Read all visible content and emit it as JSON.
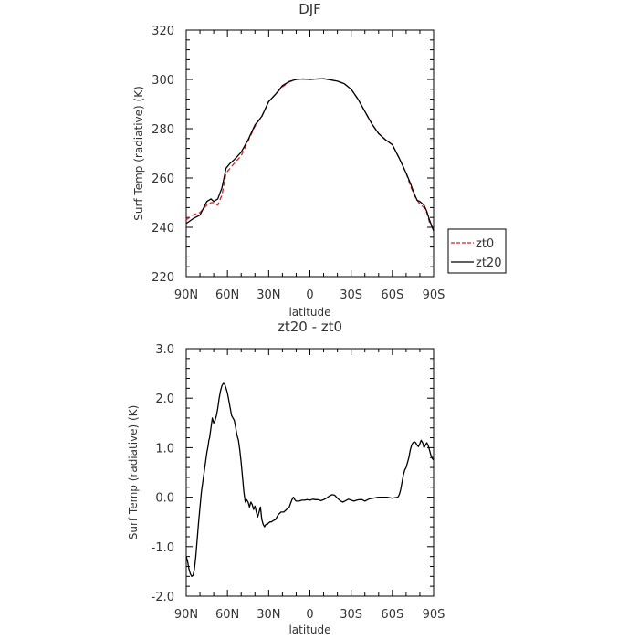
{
  "chart_data": [
    {
      "type": "line",
      "title": "DJF",
      "xlabel": "latitude",
      "ylabel": "Surf Temp (radiative) (K)",
      "xlim": [
        -90,
        90
      ],
      "ylim": [
        220,
        320
      ],
      "x_tick_values": [
        -90,
        -60,
        -30,
        0,
        30,
        60,
        90
      ],
      "x_tick_labels": [
        "90N",
        "60N",
        "30N",
        "0",
        "30S",
        "60S",
        "90S"
      ],
      "y_tick_values": [
        220,
        240,
        260,
        280,
        300,
        320
      ],
      "y_tick_labels": [
        "220",
        "240",
        "260",
        "280",
        "300",
        "320"
      ],
      "legend_position": "outside-right",
      "grid": false,
      "series": [
        {
          "name": "zt0",
          "color": "#d62020",
          "dash": "dashed",
          "x": [
            -90,
            -85,
            -80,
            -75,
            -72,
            -70,
            -67,
            -64,
            -61,
            -58,
            -55,
            -50,
            -45,
            -40,
            -35,
            -30,
            -25,
            -20,
            -15,
            -10,
            -5,
            0,
            5,
            10,
            15,
            20,
            25,
            30,
            35,
            40,
            45,
            50,
            55,
            60,
            65,
            70,
            73,
            76,
            78,
            80,
            83,
            85,
            87,
            90
          ],
          "y": [
            243,
            245,
            246,
            249,
            250,
            250,
            249,
            253,
            262,
            264,
            266,
            269,
            275,
            281,
            285,
            291,
            294,
            297,
            299,
            300,
            300.2,
            300,
            300.2,
            300.3,
            299.8,
            299.3,
            298.3,
            296,
            292,
            287,
            282,
            278,
            275.5,
            273.5,
            268,
            262,
            257,
            253,
            251,
            249.5,
            248,
            246,
            242,
            239
          ]
        },
        {
          "name": "zt20",
          "color": "#000000",
          "dash": "solid",
          "x": [
            -90,
            -85,
            -80,
            -75,
            -72,
            -70,
            -67,
            -64,
            -61,
            -58,
            -55,
            -50,
            -45,
            -40,
            -35,
            -30,
            -25,
            -20,
            -15,
            -10,
            -5,
            0,
            5,
            10,
            15,
            20,
            25,
            30,
            35,
            40,
            45,
            50,
            55,
            60,
            65,
            70,
            73,
            76,
            78,
            80,
            83,
            85,
            87,
            90
          ],
          "y": [
            241.5,
            243.5,
            245,
            250.5,
            251.5,
            250.5,
            251.5,
            256,
            264,
            266,
            267.5,
            270.5,
            275.5,
            281.5,
            285,
            291,
            294,
            297.5,
            299.2,
            300,
            300.2,
            300,
            300.2,
            300.3,
            299.8,
            299.3,
            298.3,
            296,
            292,
            287,
            282,
            278,
            275.5,
            273.5,
            268,
            262,
            258,
            253.5,
            251,
            250.5,
            249,
            246.5,
            243,
            238.5
          ]
        }
      ]
    },
    {
      "type": "line",
      "title": "zt20 - zt0",
      "xlabel": "latitude",
      "ylabel": "Surf Temp (radiative) (K)",
      "xlim": [
        -90,
        90
      ],
      "ylim": [
        -2.0,
        3.0
      ],
      "x_tick_values": [
        -90,
        -60,
        -30,
        0,
        30,
        60,
        90
      ],
      "x_tick_labels": [
        "90N",
        "60N",
        "30N",
        "0",
        "30S",
        "60S",
        "90S"
      ],
      "y_tick_values": [
        -2,
        -1,
        0,
        1,
        2,
        3
      ],
      "y_tick_labels": [
        "-2.0",
        "-1.0",
        "0.0",
        "1.0",
        "2.0",
        "3.0"
      ],
      "grid": false,
      "series": [
        {
          "color": "#000000",
          "dash": "solid",
          "x": [
            -90,
            -89,
            -88,
            -87,
            -86,
            -85,
            -84,
            -83,
            -81,
            -79,
            -77,
            -76,
            -75,
            -74,
            -73.5,
            -73,
            -72,
            -71,
            -70,
            -69,
            -68,
            -67,
            -66,
            -65,
            -64,
            -63,
            -62,
            -61,
            -60,
            -59,
            -58,
            -57,
            -56,
            -55,
            -54,
            -53,
            -52,
            -51,
            -50,
            -49,
            -48,
            -47,
            -46,
            -45,
            -44,
            -43,
            -42,
            -41,
            -40,
            -39,
            -38,
            -37,
            -36,
            -35,
            -34,
            -33,
            -32,
            -31,
            -30,
            -29,
            -28,
            -27,
            -25,
            -23,
            -21,
            -19,
            -17,
            -15,
            -14,
            -13,
            -12,
            -11,
            -10,
            -8,
            -6,
            -4,
            -2,
            0,
            2,
            4,
            6,
            8,
            10,
            12,
            14,
            16,
            18,
            20,
            22,
            24,
            26,
            28,
            30,
            32,
            34,
            36,
            38,
            40,
            42,
            44,
            46,
            48,
            50,
            52,
            54,
            56,
            58,
            60,
            62,
            64,
            65,
            66,
            67,
            68,
            69,
            70,
            71,
            72,
            73,
            74,
            75,
            76,
            77,
            78,
            79,
            80,
            81,
            82,
            83,
            84,
            85,
            86,
            87,
            88,
            89,
            90
          ],
          "y": [
            -1.2,
            -1.3,
            -1.45,
            -1.55,
            -1.6,
            -1.58,
            -1.45,
            -1.2,
            -0.5,
            0.1,
            0.5,
            0.7,
            0.9,
            1.05,
            1.15,
            1.2,
            1.4,
            1.6,
            1.5,
            1.55,
            1.65,
            1.8,
            2.0,
            2.15,
            2.25,
            2.3,
            2.28,
            2.2,
            2.1,
            1.95,
            1.8,
            1.65,
            1.6,
            1.55,
            1.4,
            1.25,
            1.15,
            0.95,
            0.7,
            0.4,
            0.1,
            -0.1,
            -0.05,
            -0.1,
            -0.2,
            -0.1,
            -0.15,
            -0.25,
            -0.18,
            -0.3,
            -0.4,
            -0.3,
            -0.2,
            -0.45,
            -0.55,
            -0.6,
            -0.55,
            -0.55,
            -0.52,
            -0.5,
            -0.5,
            -0.48,
            -0.45,
            -0.35,
            -0.3,
            -0.3,
            -0.25,
            -0.2,
            -0.12,
            -0.05,
            0.0,
            -0.05,
            -0.08,
            -0.08,
            -0.06,
            -0.06,
            -0.05,
            -0.06,
            -0.04,
            -0.05,
            -0.05,
            -0.07,
            -0.05,
            -0.02,
            0.02,
            0.05,
            0.04,
            -0.02,
            -0.07,
            -0.1,
            -0.07,
            -0.04,
            -0.06,
            -0.08,
            -0.06,
            -0.05,
            -0.05,
            -0.08,
            -0.05,
            -0.03,
            -0.02,
            -0.01,
            0.0,
            0.0,
            0.0,
            0.0,
            -0.01,
            -0.02,
            -0.01,
            0.0,
            0.05,
            0.15,
            0.3,
            0.45,
            0.55,
            0.6,
            0.7,
            0.8,
            0.95,
            1.05,
            1.1,
            1.12,
            1.1,
            1.05,
            1.02,
            1.08,
            1.15,
            1.1,
            1.0,
            1.05,
            1.1,
            1.05,
            0.95,
            0.85,
            0.78,
            0.75
          ]
        }
      ]
    }
  ]
}
